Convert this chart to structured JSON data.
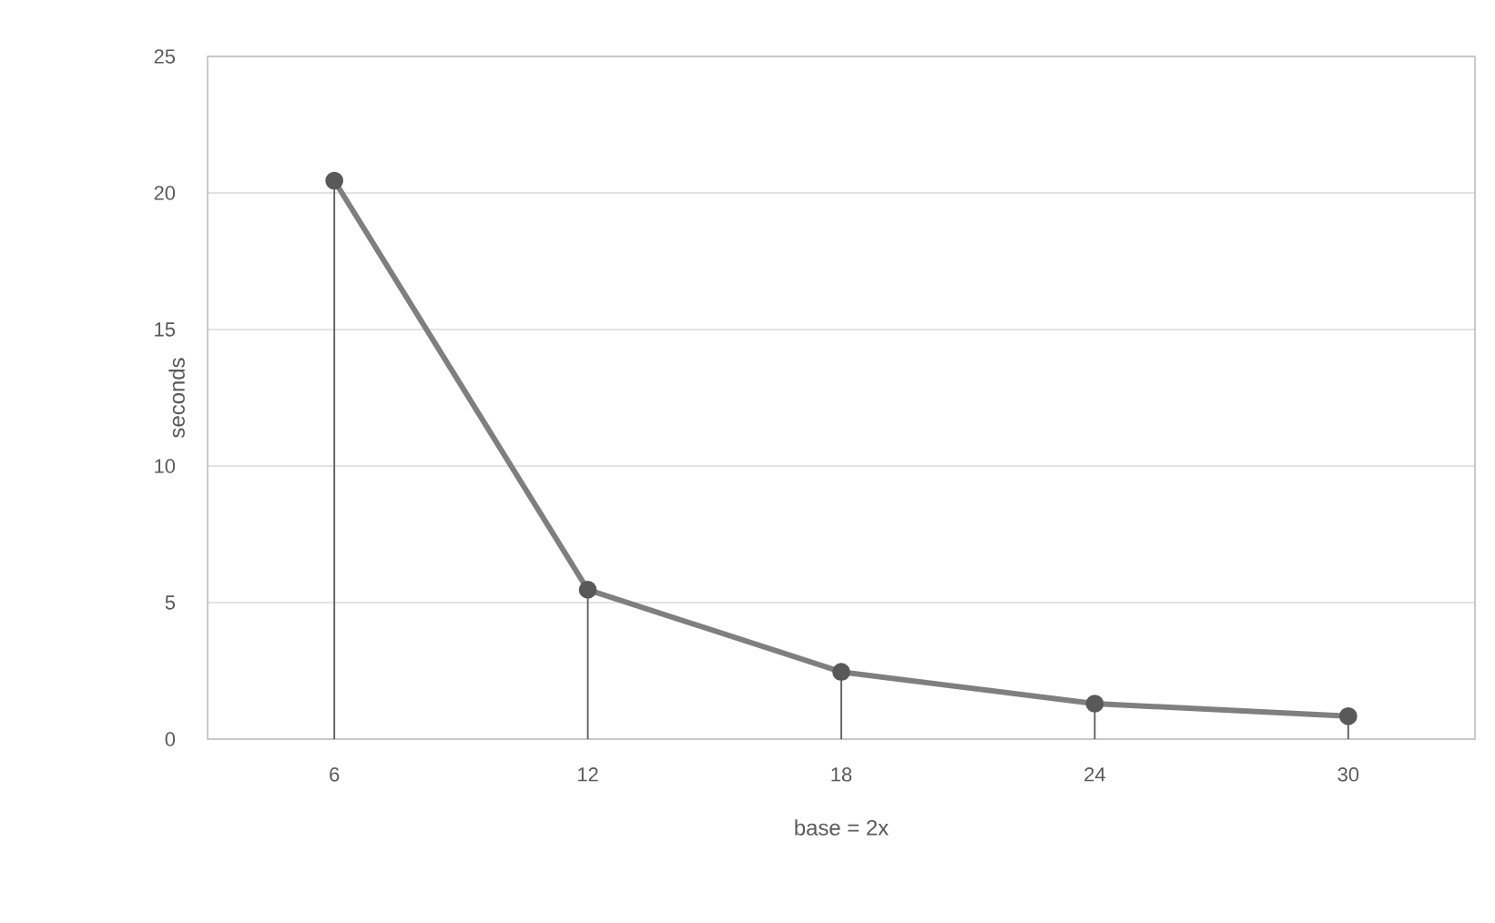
{
  "chart_data": {
    "type": "line",
    "xlabel": "base = 2x",
    "ylabel": "seconds",
    "categories": [
      "6",
      "12",
      "18",
      "24",
      "30"
    ],
    "series": [
      {
        "color": "#7f7f7f",
        "values": [
          20.45,
          5.47,
          2.46,
          1.3,
          0.84
        ],
        "marker": "none"
      },
      {
        "type": "lollipop",
        "color": "#595959",
        "values": [
          20.45,
          5.47,
          2.46,
          1.3,
          0.84
        ],
        "marker": "circle"
      }
    ],
    "ylim": [
      0,
      25
    ],
    "yticks": [
      0,
      5,
      10,
      15,
      20,
      25
    ],
    "grid": "y"
  }
}
